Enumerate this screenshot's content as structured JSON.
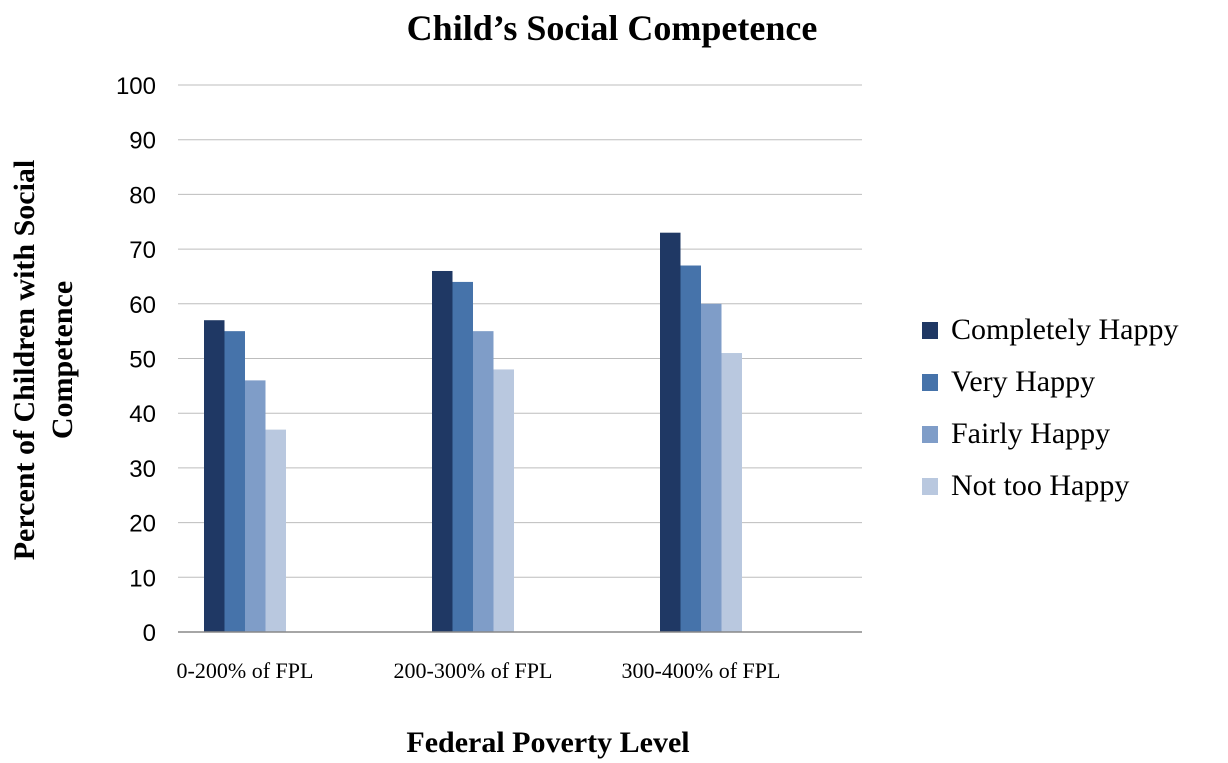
{
  "chart_data": {
    "type": "bar",
    "title": "Child’s Social Competence",
    "xlabel": "Federal Poverty Level",
    "ylabel_lines": [
      "Percent of Children with Social",
      "Competence"
    ],
    "categories": [
      "0-200% of FPL",
      "200-300% of FPL",
      "300-400% of FPL"
    ],
    "series": [
      {
        "name": "Completely Happy",
        "color": "#1f3864",
        "values": [
          57,
          66,
          73
        ]
      },
      {
        "name": "Very Happy",
        "color": "#4673aa",
        "values": [
          55,
          64,
          67
        ]
      },
      {
        "name": "Fairly Happy",
        "color": "#7f9dc8",
        "values": [
          46,
          55,
          60
        ]
      },
      {
        "name": "Not too Happy",
        "color": "#b9c8df",
        "values": [
          37,
          48,
          51
        ]
      }
    ],
    "ylim": [
      0,
      100
    ],
    "yticks": [
      0,
      10,
      20,
      30,
      40,
      50,
      60,
      70,
      80,
      90,
      100
    ],
    "grid": true,
    "legend_position": "right"
  }
}
